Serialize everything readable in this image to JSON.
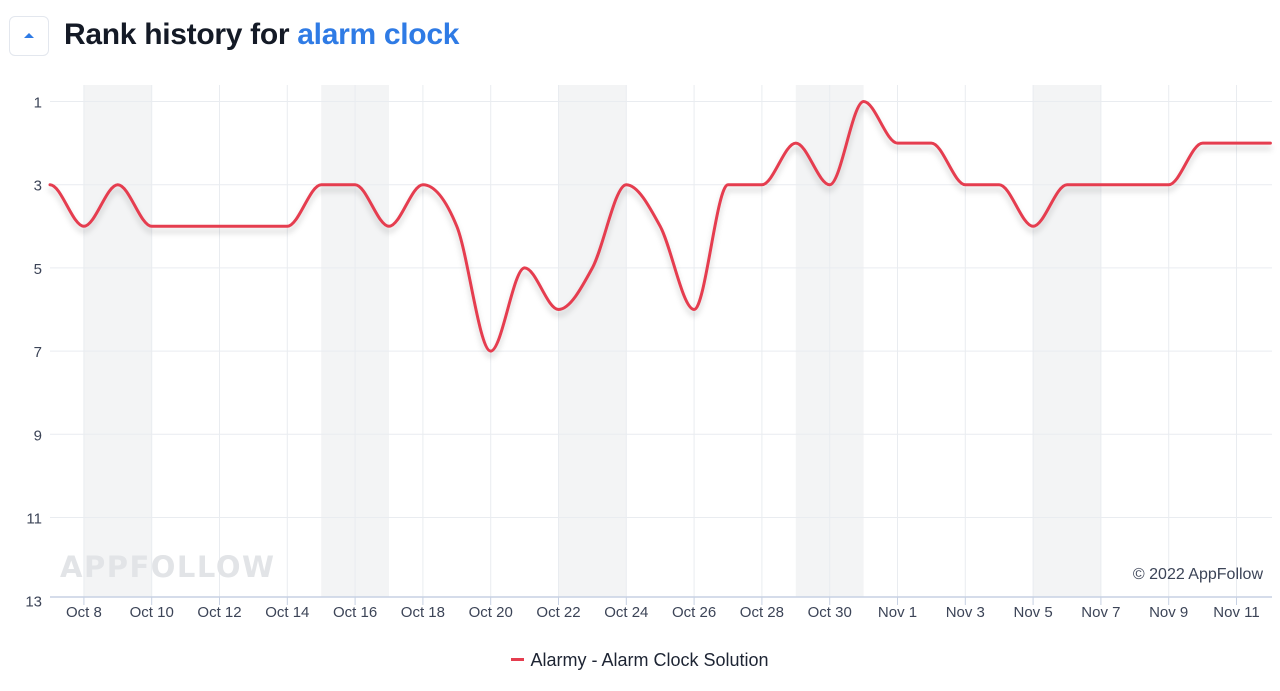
{
  "header": {
    "title_prefix": "Rank history for",
    "keyword": "alarm clock"
  },
  "chart_data": {
    "type": "line",
    "x": [
      "Oct 7",
      "Oct 8",
      "Oct 9",
      "Oct 10",
      "Oct 11",
      "Oct 12",
      "Oct 13",
      "Oct 14",
      "Oct 15",
      "Oct 16",
      "Oct 17",
      "Oct 18",
      "Oct 19",
      "Oct 20",
      "Oct 21",
      "Oct 22",
      "Oct 23",
      "Oct 24",
      "Oct 25",
      "Oct 26",
      "Oct 27",
      "Oct 28",
      "Oct 29",
      "Oct 30",
      "Oct 31",
      "Nov 1",
      "Nov 2",
      "Nov 3",
      "Nov 4",
      "Nov 5",
      "Nov 6",
      "Nov 7",
      "Nov 8",
      "Nov 9",
      "Nov 10",
      "Nov 11",
      "Nov 12"
    ],
    "series": [
      {
        "name": "Alarmy - Alarm Clock Solution",
        "color": "#e53d4f",
        "values": [
          3,
          4,
          3,
          4,
          4,
          4,
          4,
          4,
          3,
          3,
          4,
          3,
          4,
          7,
          5,
          6,
          5,
          3,
          4,
          6,
          3,
          3,
          2,
          3,
          1,
          2,
          2,
          3,
          3,
          4,
          3,
          3,
          3,
          3,
          2,
          2,
          2
        ]
      }
    ],
    "x_tick_labels": [
      "Oct 8",
      "Oct 10",
      "Oct 12",
      "Oct 14",
      "Oct 16",
      "Oct 18",
      "Oct 20",
      "Oct 22",
      "Oct 24",
      "Oct 26",
      "Oct 28",
      "Oct 30",
      "Nov 1",
      "Nov 3",
      "Nov 5",
      "Nov 7",
      "Nov 9",
      "Nov 11"
    ],
    "y_tick_labels": [
      "1",
      "3",
      "5",
      "7",
      "9",
      "11",
      "13"
    ],
    "ylim": [
      13,
      1
    ],
    "y_inverted": true,
    "shaded_bands": [
      [
        "Oct 8",
        "Oct 10"
      ],
      [
        "Oct 15",
        "Oct 17"
      ],
      [
        "Oct 22",
        "Oct 24"
      ],
      [
        "Oct 29",
        "Oct 31"
      ],
      [
        "Nov 5",
        "Nov 7"
      ]
    ],
    "grid": true,
    "legend_position": "bottom",
    "watermark": "APPFOLLOW",
    "copyright": "© 2022 AppFollow"
  },
  "legend": {
    "label": "Alarmy - Alarm Clock Solution"
  }
}
